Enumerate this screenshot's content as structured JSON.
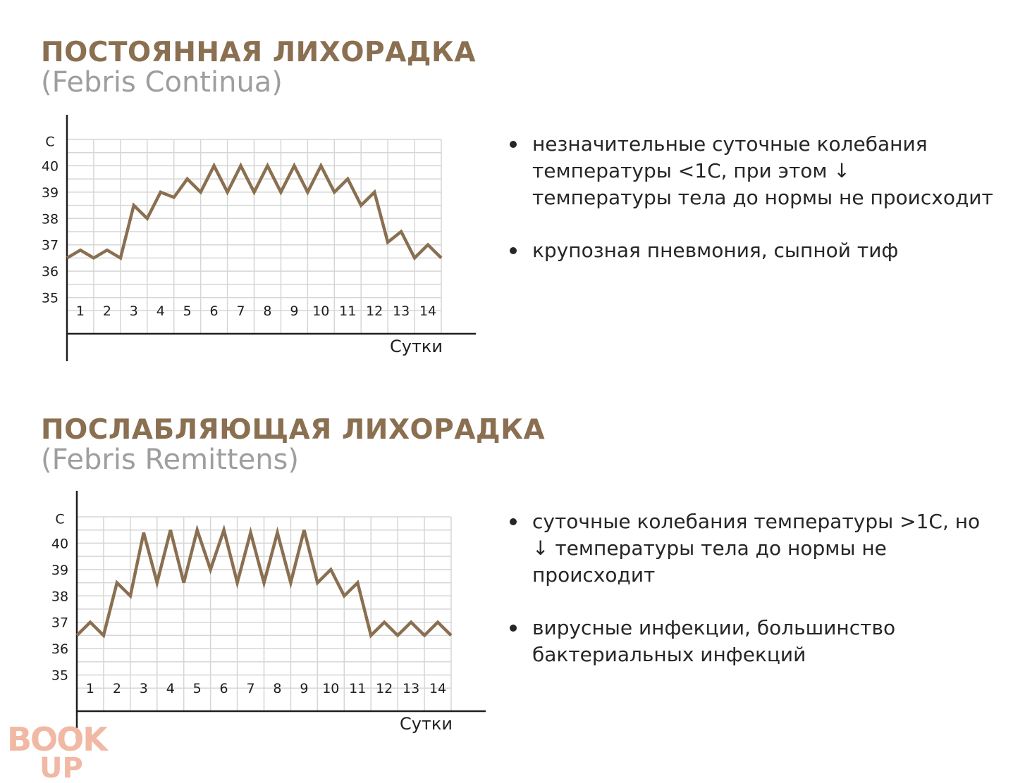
{
  "colors": {
    "accent": "#8a6f50",
    "subtitle": "#9e9e9e",
    "grid": "#d6d6d6",
    "axis": "#1e1e1e",
    "logo": "#f1b8a4"
  },
  "sections": [
    {
      "title": "ПОСТОЯННАЯ ЛИХОРАДКА",
      "subtitle": "(Febris Continua)",
      "bullets": [
        "незначительные суточные колебания температуры <1С, при этом ↓ температуры тела до нормы не происходит",
        "крупозная пневмония, сыпной тиф"
      ]
    },
    {
      "title": "ПОСЛАБЛЯЮЩАЯ ЛИХОРАДКА",
      "subtitle": "(Febris Remittens)",
      "bullets": [
        "суточные колебания температуры >1С, но ↓ температуры тела до нормы не происходит",
        "вирусные инфекции, большинство бактериальных инфекций"
      ]
    }
  ],
  "chart_data": [
    {
      "type": "line",
      "ylabel": "С",
      "xlabel": "Сутки",
      "y_ticks": [
        "35",
        "36",
        "37",
        "38",
        "39",
        "40"
      ],
      "x_ticks": [
        "1",
        "2",
        "3",
        "4",
        "5",
        "6",
        "7",
        "8",
        "9",
        "10",
        "11",
        "12",
        "13",
        "14"
      ],
      "ylim": [
        34,
        41
      ],
      "xlim": [
        0.5,
        14.5
      ],
      "grid": true,
      "series": [
        {
          "x": [
            0.5,
            1,
            1.5,
            2,
            2.5,
            3,
            3.5,
            4,
            4.5,
            5,
            5.5,
            6,
            6.5,
            7,
            7.5,
            8,
            8.5,
            9,
            9.5,
            10,
            10.5,
            11,
            11.5,
            12,
            12.5,
            13,
            13.5,
            14,
            14.5
          ],
          "y": [
            36.5,
            36.8,
            36.5,
            36.8,
            36.5,
            38.5,
            38.0,
            39.0,
            38.8,
            39.5,
            39.0,
            40.0,
            39.0,
            40.0,
            39.0,
            40.0,
            39.0,
            40.0,
            39.0,
            40.0,
            39.0,
            39.5,
            38.5,
            39.0,
            37.1,
            37.5,
            36.5,
            37.0,
            36.5
          ]
        }
      ]
    },
    {
      "type": "line",
      "ylabel": "С",
      "xlabel": "Сутки",
      "y_ticks": [
        "35",
        "36",
        "37",
        "38",
        "39",
        "40"
      ],
      "x_ticks": [
        "1",
        "2",
        "3",
        "4",
        "5",
        "6",
        "7",
        "8",
        "9",
        "10",
        "11",
        "12",
        "13",
        "14"
      ],
      "ylim": [
        34,
        41
      ],
      "xlim": [
        0.5,
        14.5
      ],
      "grid": true,
      "series": [
        {
          "x": [
            0.5,
            1,
            1.5,
            2,
            2.5,
            3,
            3.5,
            4,
            4.5,
            5,
            5.5,
            6,
            6.5,
            7,
            7.5,
            8,
            8.5,
            9,
            9.5,
            10,
            10.5,
            11,
            11.5,
            12,
            12.5,
            13,
            13.5,
            14,
            14.5
          ],
          "y": [
            36.5,
            37.0,
            36.5,
            38.5,
            38.0,
            40.4,
            38.5,
            40.5,
            38.5,
            40.5,
            39.0,
            40.5,
            38.5,
            40.4,
            38.5,
            40.4,
            38.5,
            40.5,
            38.5,
            39.0,
            38.0,
            38.5,
            36.5,
            37.0,
            36.5,
            37.0,
            36.5,
            37.0,
            36.5
          ]
        }
      ]
    }
  ],
  "logo": {
    "top": "BOOK",
    "bottom": "UP"
  }
}
